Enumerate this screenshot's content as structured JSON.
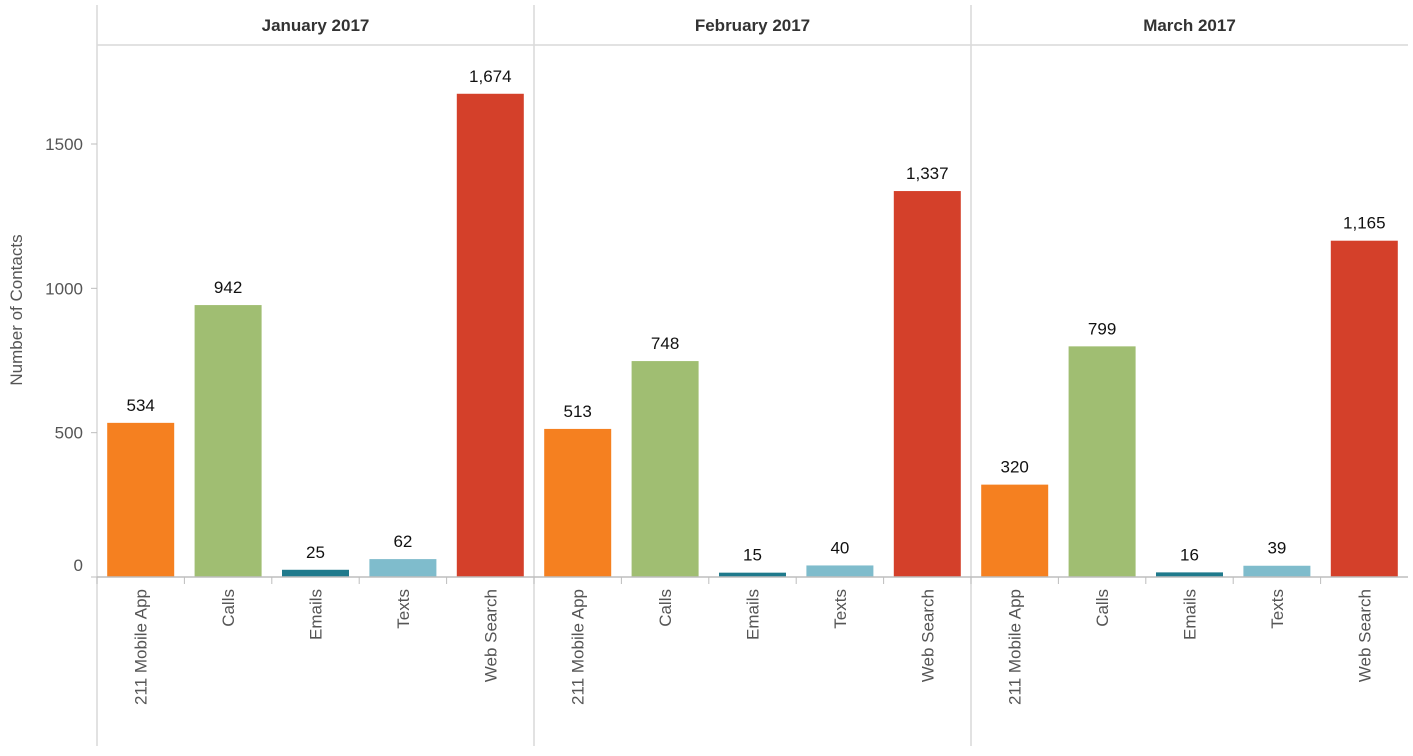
{
  "chart_data": {
    "type": "bar",
    "ylabel": "Number of Contacts",
    "ylim": [
      0,
      1800
    ],
    "yticks": [
      0,
      500,
      1000,
      1500
    ],
    "grid": false,
    "categories": [
      "211 Mobile App",
      "Calls",
      "Emails",
      "Texts",
      "Web Search"
    ],
    "colors": {
      "211 Mobile App": "#f58020",
      "Calls": "#a0be72",
      "Emails": "#1f7a8c",
      "Texts": "#7fbccc",
      "Web Search": "#d4402a"
    },
    "panels": [
      {
        "title": "January 2017",
        "values": [
          534,
          942,
          25,
          62,
          1674
        ],
        "labels": [
          "534",
          "942",
          "25",
          "62",
          "1,674"
        ]
      },
      {
        "title": "February 2017",
        "values": [
          513,
          748,
          15,
          40,
          1337
        ],
        "labels": [
          "513",
          "748",
          "15",
          "40",
          "1,337"
        ]
      },
      {
        "title": "March 2017",
        "values": [
          320,
          799,
          16,
          39,
          1165
        ],
        "labels": [
          "320",
          "799",
          "16",
          "39",
          "1,165"
        ]
      }
    ]
  }
}
